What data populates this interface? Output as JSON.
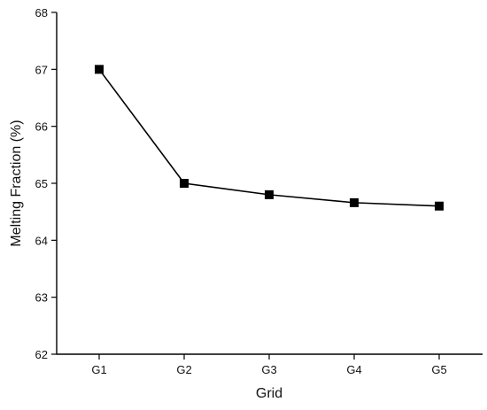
{
  "chart_data": {
    "type": "line",
    "title": "",
    "xlabel": "Grid",
    "ylabel": "Melting Fraction (%)",
    "categories": [
      "G1",
      "G2",
      "G3",
      "G4",
      "G5"
    ],
    "series": [
      {
        "values": [
          67.0,
          65.0,
          64.8,
          64.66,
          64.6
        ]
      }
    ],
    "ylim": [
      62,
      68
    ],
    "yticks": [
      "62",
      "63",
      "64",
      "65",
      "66",
      "67",
      "68"
    ],
    "marker": "square",
    "line_color": "#000000",
    "marker_color": "#000000",
    "grid": false,
    "legend": "none"
  }
}
